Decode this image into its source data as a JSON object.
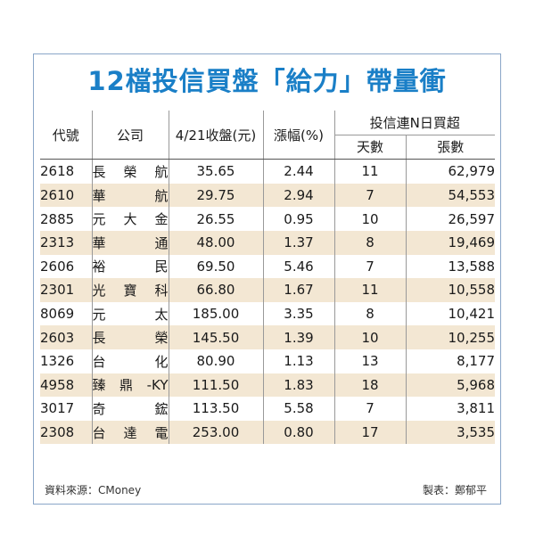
{
  "title": "12檔投信買盤「給力」帶量衝",
  "headers": {
    "code": "代號",
    "company": "公司",
    "close": "4/21收盤(元)",
    "change": "漲幅(%)",
    "group": "投信連N日買超",
    "days": "天數",
    "shares": "張數"
  },
  "rows": [
    {
      "code": "2618",
      "name": "長榮航",
      "close": "35.65",
      "change": "2.44",
      "days": "11",
      "shares": "62,979"
    },
    {
      "code": "2610",
      "name": "華航",
      "close": "29.75",
      "change": "2.94",
      "days": "7",
      "shares": "54,553"
    },
    {
      "code": "2885",
      "name": "元大金",
      "close": "26.55",
      "change": "0.95",
      "days": "10",
      "shares": "26,597"
    },
    {
      "code": "2313",
      "name": "華通",
      "close": "48.00",
      "change": "1.37",
      "days": "8",
      "shares": "19,469"
    },
    {
      "code": "2606",
      "name": "裕民",
      "close": "69.50",
      "change": "5.46",
      "days": "7",
      "shares": "13,588"
    },
    {
      "code": "2301",
      "name": "光寶科",
      "close": "66.80",
      "change": "1.67",
      "days": "11",
      "shares": "10,558"
    },
    {
      "code": "8069",
      "name": "元太",
      "close": "185.00",
      "change": "3.35",
      "days": "8",
      "shares": "10,421"
    },
    {
      "code": "2603",
      "name": "長榮",
      "close": "145.50",
      "change": "1.39",
      "days": "10",
      "shares": "10,255"
    },
    {
      "code": "1326",
      "name": "台化",
      "close": "80.90",
      "change": "1.13",
      "days": "13",
      "shares": "8,177"
    },
    {
      "code": "4958",
      "name": "臻鼎-KY",
      "close": "111.50",
      "change": "1.83",
      "days": "18",
      "shares": "5,968"
    },
    {
      "code": "3017",
      "name": "奇鋐",
      "close": "113.50",
      "change": "5.58",
      "days": "7",
      "shares": "3,811"
    },
    {
      "code": "2308",
      "name": "台達電",
      "close": "253.00",
      "change": "0.80",
      "days": "17",
      "shares": "3,535"
    }
  ],
  "source": "資料來源：CMoney",
  "maker": "製表：鄭郁平",
  "colors": {
    "title": "#1a7fc7",
    "alt_row": "#f3e7d3",
    "frame": "#8aa6c8"
  }
}
